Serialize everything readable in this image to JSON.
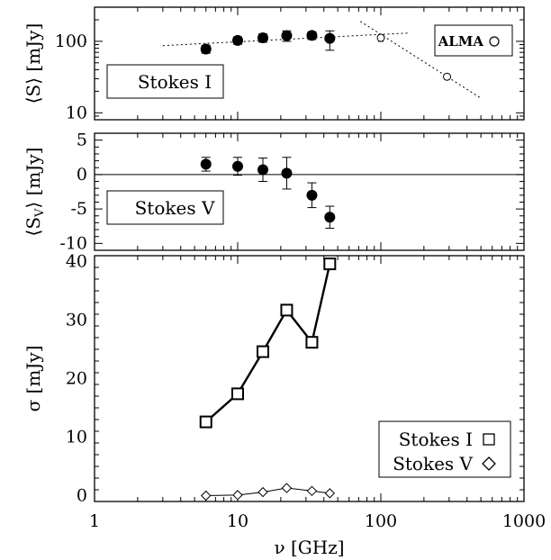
{
  "chart_data": [
    {
      "type": "scatter",
      "ylabel": "⟨S⟩ [mJy]",
      "ylabel_parts": {
        "open": "⟨",
        "main": "S",
        "close": "⟩ [mJy]"
      },
      "yscale": "log",
      "xscale": "log",
      "xlim": [
        1,
        1000
      ],
      "ylim": [
        8,
        300
      ],
      "yticks": [
        {
          "v": 10,
          "label": "10"
        },
        {
          "v": 100,
          "label": "100"
        }
      ],
      "legend_box": {
        "label": "Stokes I",
        "position": "lower-left"
      },
      "alma_box": {
        "label": "ALMA",
        "position": "top-right"
      },
      "series": [
        {
          "x": [
            6,
            10,
            15,
            22,
            33,
            44
          ],
          "y": [
            78,
            103,
            112,
            120,
            121,
            110
          ],
          "yerr_low": [
            10,
            12,
            15,
            20,
            15,
            35
          ],
          "yerr_high": [
            10,
            12,
            15,
            20,
            15,
            30
          ],
          "marker": "filled-circle"
        },
        {
          "name": "ALMA",
          "x": [
            100,
            290
          ],
          "y": [
            112,
            32
          ],
          "yerr_low": [
            12,
            2
          ],
          "yerr_high": [
            12,
            2
          ],
          "marker": "open-circle"
        }
      ],
      "fits": [
        {
          "style": "dotted",
          "x": [
            3,
            160
          ],
          "y": [
            87,
            131
          ]
        },
        {
          "style": "dotted",
          "x": [
            72,
            500
          ],
          "y": [
            190,
            16
          ]
        }
      ]
    },
    {
      "type": "scatter",
      "ylabel": "⟨Sv⟩ [mJy]",
      "ylabel_parts": {
        "open": "⟨",
        "main": "S",
        "sub": "V",
        "close": "⟩ [mJy]"
      },
      "xscale": "log",
      "xlim": [
        1,
        1000
      ],
      "ylim": [
        -11,
        6
      ],
      "yticks": [
        {
          "v": 5,
          "label": "5"
        },
        {
          "v": 0,
          "label": "0"
        },
        {
          "v": -5,
          "label": "-5"
        },
        {
          "v": -10,
          "label": "-10"
        }
      ],
      "zero_line": true,
      "legend_box": {
        "label": "Stokes V",
        "position": "lower-left"
      },
      "series": [
        {
          "x": [
            6,
            10,
            15,
            22,
            33,
            44
          ],
          "y": [
            1.5,
            1.2,
            0.7,
            0.2,
            -3.0,
            -6.2
          ],
          "yerr": [
            1.0,
            1.3,
            1.7,
            2.3,
            1.8,
            1.6
          ],
          "marker": "filled-circle"
        }
      ]
    },
    {
      "type": "line",
      "ylabel": "σ [mJy]",
      "xlabel": "ν [GHz]",
      "xscale": "log",
      "xlim": [
        1,
        1000
      ],
      "ylim": [
        -1,
        41
      ],
      "xticks": [
        {
          "v": 1,
          "label": "1"
        },
        {
          "v": 10,
          "label": "10"
        },
        {
          "v": 100,
          "label": "100"
        },
        {
          "v": 1000,
          "label": "1000"
        }
      ],
      "yticks": [
        {
          "v": 0,
          "label": "0"
        },
        {
          "v": 10,
          "label": "10"
        },
        {
          "v": 20,
          "label": "20"
        },
        {
          "v": 30,
          "label": "30"
        },
        {
          "v": 40,
          "label": "40"
        }
      ],
      "series": [
        {
          "name": "Stokes I",
          "symbol": "□",
          "x": [
            6,
            10,
            15,
            22,
            33,
            44
          ],
          "y": [
            12.6,
            17.4,
            24.6,
            31.7,
            26.2,
            39.6
          ],
          "marker": "open-square"
        },
        {
          "name": "Stokes V",
          "symbol": "◇",
          "x": [
            6,
            10,
            15,
            22,
            33,
            44
          ],
          "y": [
            0.0,
            0.1,
            0.6,
            1.3,
            0.8,
            0.4
          ],
          "marker": "open-diamond"
        }
      ],
      "legend": {
        "position": "lower-right"
      }
    }
  ]
}
